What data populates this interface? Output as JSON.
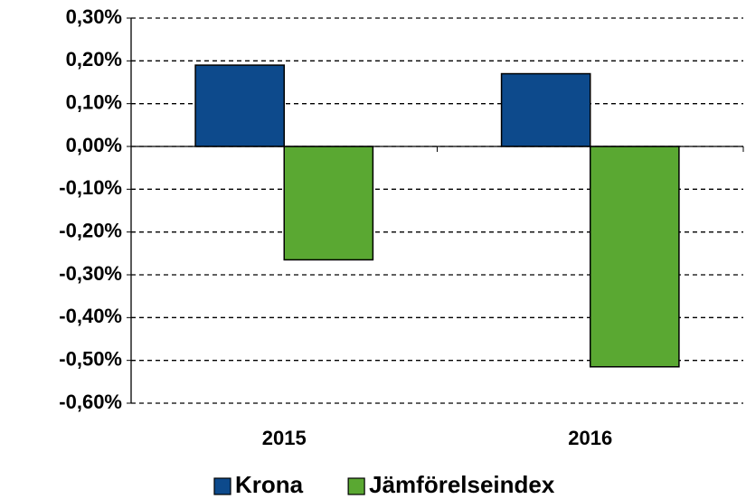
{
  "chart_data": {
    "type": "bar",
    "categories": [
      "2015",
      "2016"
    ],
    "series": [
      {
        "name": "Krona",
        "color": "#0d4a8c",
        "values": [
          0.19,
          0.17
        ]
      },
      {
        "name": "Jämförelseindex",
        "color": "#5aa832",
        "values": [
          -0.265,
          -0.515
        ]
      }
    ],
    "ylim": [
      -0.6,
      0.3
    ],
    "yticks": [
      {
        "value": -0.6,
        "label": "-0,60%"
      },
      {
        "value": -0.5,
        "label": "-0,50%"
      },
      {
        "value": -0.4,
        "label": "-0,40%"
      },
      {
        "value": -0.3,
        "label": "-0,30%"
      },
      {
        "value": -0.2,
        "label": "-0,20%"
      },
      {
        "value": -0.1,
        "label": "-0,10%"
      },
      {
        "value": 0,
        "label": "0,00%"
      },
      {
        "value": 0.1,
        "label": "0,10%"
      },
      {
        "value": 0.2,
        "label": "0,20%"
      },
      {
        "value": 0.3,
        "label": "0,30%"
      }
    ],
    "grid": true,
    "legend": "bottom"
  }
}
